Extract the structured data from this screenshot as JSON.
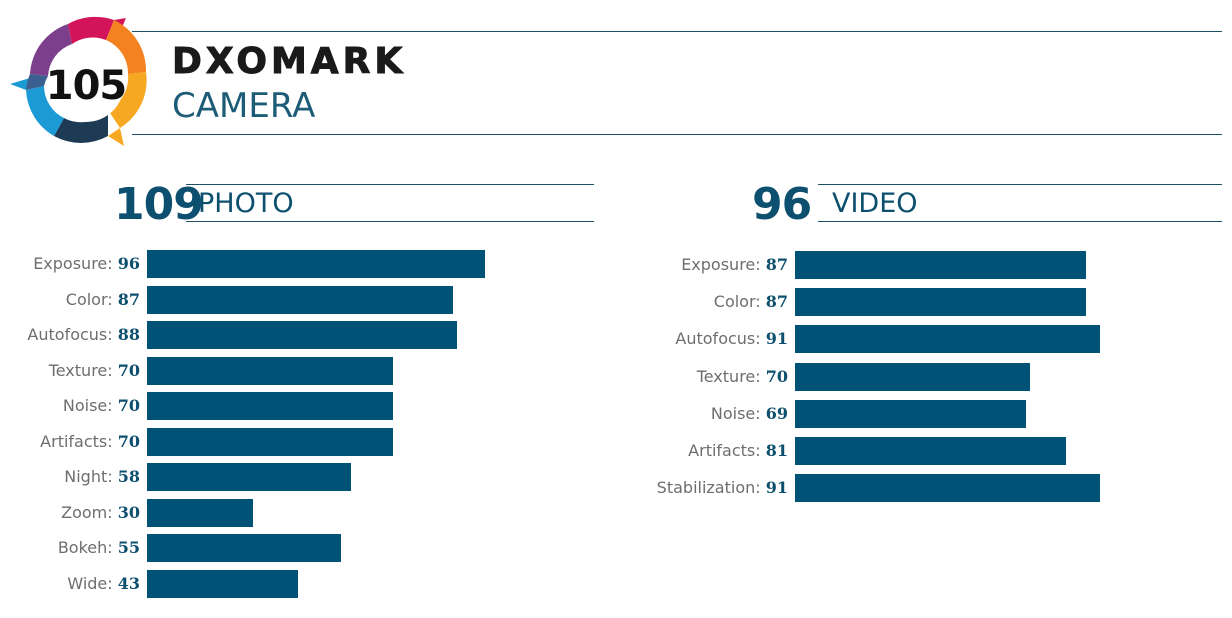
{
  "header": {
    "overall_score": "105",
    "brand": "DXOMARK",
    "category": "CAMERA"
  },
  "badge_colors": [
    "#7b3f8c",
    "#d4145a",
    "#f58220",
    "#f7a823",
    "#1b9ad6",
    "#3b5f8f",
    "#1d3b55"
  ],
  "bar_color": "#005277",
  "accent_color": "#0d4f6e",
  "chart_data": [
    {
      "type": "bar",
      "orientation": "horizontal",
      "title": "PHOTO",
      "score": "109",
      "categories": [
        "Exposure:",
        "Color:",
        "Autofocus:",
        "Texture:",
        "Noise:",
        "Artifacts:",
        "Night:",
        "Zoom:",
        "Bokeh:",
        "Wide:"
      ],
      "values": [
        96,
        87,
        88,
        70,
        70,
        70,
        58,
        30,
        55,
        43
      ]
    },
    {
      "type": "bar",
      "orientation": "horizontal",
      "title": "VIDEO",
      "score": "96",
      "categories": [
        "Exposure:",
        "Color:",
        "Autofocus:",
        "Texture:",
        "Noise:",
        "Artifacts:",
        "Stabilization:"
      ],
      "values": [
        87,
        87,
        91,
        70,
        69,
        81,
        91
      ]
    }
  ]
}
